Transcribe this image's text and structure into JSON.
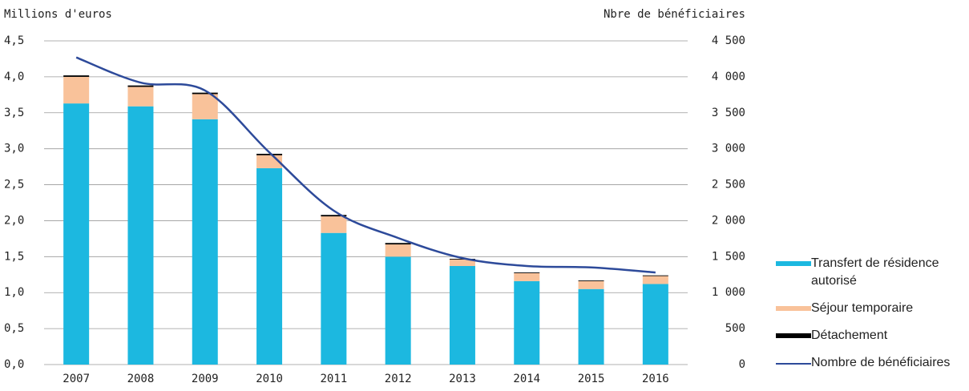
{
  "chart_data": {
    "type": "bar",
    "y_axis_label": "Millions d'euros",
    "y2_axis_label": "Nbre de bénéficiaires",
    "categories": [
      "2007",
      "2008",
      "2009",
      "2010",
      "2011",
      "2012",
      "2013",
      "2014",
      "2015",
      "2016"
    ],
    "series": [
      {
        "name": "Transfert de résidence autorisé",
        "color": "#1cb8e0",
        "values": [
          3.63,
          3.59,
          3.41,
          2.73,
          1.83,
          1.5,
          1.37,
          1.16,
          1.05,
          1.12
        ]
      },
      {
        "name": "Séjour temporaire",
        "color": "#f9c29a",
        "values": [
          0.37,
          0.27,
          0.35,
          0.18,
          0.23,
          0.17,
          0.09,
          0.11,
          0.11,
          0.11
        ]
      },
      {
        "name": "Détachement",
        "color": "#000000",
        "values": [
          0.02,
          0.02,
          0.02,
          0.02,
          0.02,
          0.02,
          0.01,
          0.01,
          0.01,
          0.01
        ]
      },
      {
        "name": "Nombre de bénéficiaires",
        "color": "#2d4a9a",
        "type": "line",
        "axis": "y2",
        "values": [
          4270,
          3920,
          3810,
          2950,
          2140,
          1760,
          1480,
          1370,
          1350,
          1280
        ]
      }
    ],
    "ylim": [
      0,
      4.5
    ],
    "yticks": [
      {
        "value": 0,
        "label": "0,0"
      },
      {
        "value": 0.5,
        "label": "0,5"
      },
      {
        "value": 1,
        "label": "1,0"
      },
      {
        "value": 1.5,
        "label": "1,5"
      },
      {
        "value": 2,
        "label": "2,0"
      },
      {
        "value": 2.5,
        "label": "2,5"
      },
      {
        "value": 3,
        "label": "3,0"
      },
      {
        "value": 3.5,
        "label": "3,5"
      },
      {
        "value": 4,
        "label": "4,0"
      },
      {
        "value": 4.5,
        "label": "4,5"
      }
    ],
    "y2lim": [
      0,
      4500
    ],
    "y2ticks": [
      0,
      500,
      {
        "value": 1000,
        "label": "1 000"
      },
      {
        "value": 1500,
        "label": "1 500"
      },
      {
        "value": 2000,
        "label": "2 000"
      },
      {
        "value": 2500,
        "label": "2 500"
      },
      {
        "value": 3000,
        "label": "3 000"
      },
      {
        "value": 3500,
        "label": "3 500"
      },
      {
        "value": 4000,
        "label": "4 000"
      },
      {
        "value": 4500,
        "label": "4 500"
      }
    ],
    "grid": true,
    "legend": "right"
  }
}
